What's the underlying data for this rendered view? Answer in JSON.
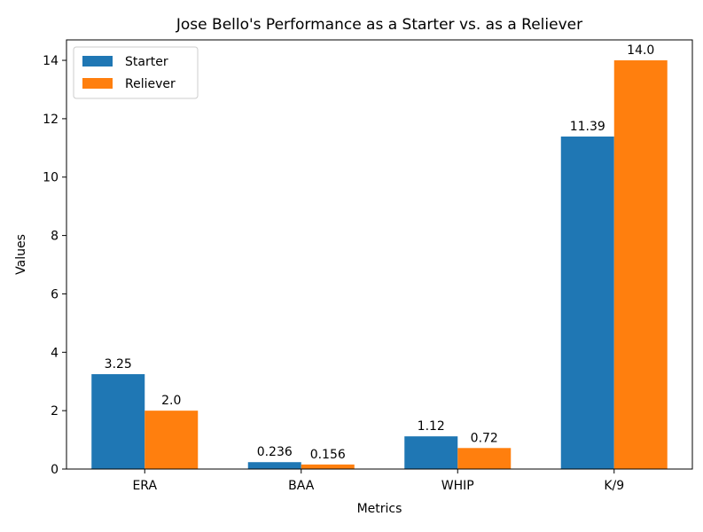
{
  "chart_data": {
    "type": "bar",
    "title": "Jose Bello's Performance as a Starter vs. as a Reliever",
    "xlabel": "Metrics",
    "ylabel": "Values",
    "categories": [
      "ERA",
      "BAA",
      "WHIP",
      "K/9"
    ],
    "series": [
      {
        "name": "Starter",
        "values": [
          3.25,
          0.236,
          1.12,
          11.39
        ],
        "labels": [
          "3.25",
          "0.236",
          "1.12",
          "11.39"
        ],
        "color": "#1f77b4"
      },
      {
        "name": "Reliever",
        "values": [
          2.0,
          0.156,
          0.72,
          14.0
        ],
        "labels": [
          "2.0",
          "0.156",
          "0.72",
          "14.0"
        ],
        "color": "#ff7f0e"
      }
    ],
    "ylim": [
      0,
      14.7
    ],
    "yticks": [
      "0",
      "2",
      "4",
      "6",
      "8",
      "10",
      "12",
      "14"
    ],
    "grid": false,
    "legend": "top-left"
  }
}
